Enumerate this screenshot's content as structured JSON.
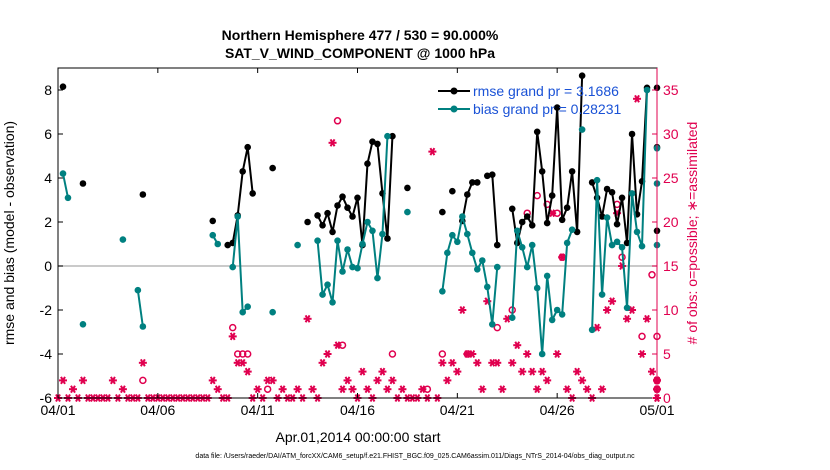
{
  "chart_data": {
    "type": "line",
    "title": "Northern Hemisphere 477 / 530 = 90.000%",
    "subtitle": "SAT_V_WIND_COMPONENT @ 1000 hPa",
    "xlabel": "Apr.01,2014 00:00:00 start",
    "ylabel_left": "rmse and bias (model - observation)",
    "ylabel_right": "# of obs: o=possible; ∗=assimilated",
    "footer": "data file: /Users/raeder/DAI/ATM_forcXX/CAM6_setup/f.e21.FHIST_BGC.f09_025.CAM6assim.011/Diags_NTrS_2014-04/obs_diag_output.nc",
    "xlim": [
      0,
      30
    ],
    "ylim_left": [
      -6,
      9
    ],
    "ylim_right": [
      0,
      37.5
    ],
    "x_ticks": [
      0,
      5,
      10,
      15,
      20,
      25,
      30
    ],
    "x_tick_labels": [
      "04/01",
      "04/06",
      "04/11",
      "04/16",
      "04/21",
      "04/26",
      "05/01"
    ],
    "y_ticks_left": [
      -6,
      -4,
      -2,
      0,
      2,
      4,
      6,
      8
    ],
    "y_ticks_right": [
      0,
      5,
      10,
      15,
      20,
      25,
      30,
      35
    ],
    "legend": [
      {
        "label": "rmse grand pr = 3.1686",
        "color": "#000000"
      },
      {
        "label": "bias grand pr = 0.28231",
        "color": "#008080"
      }
    ],
    "series": [
      {
        "name": "rmse",
        "color": "#000000",
        "points": [
          [
            0.25,
            8.15
          ],
          [
            1.25,
            3.75
          ],
          [
            4.25,
            3.25
          ],
          [
            7.75,
            2.05
          ],
          [
            8.75,
            1.05
          ],
          [
            8.5,
            0.95
          ],
          [
            9.0,
            2.3
          ],
          [
            9.25,
            4.3
          ],
          [
            9.5,
            5.4
          ],
          [
            9.75,
            3.3
          ],
          [
            10.75,
            4.45
          ],
          [
            12.5,
            2.0
          ],
          [
            13.0,
            2.3
          ],
          [
            13.25,
            1.85
          ],
          [
            13.5,
            2.4
          ],
          [
            13.75,
            1.55
          ],
          [
            14.0,
            2.75
          ],
          [
            14.25,
            3.15
          ],
          [
            14.5,
            2.65
          ],
          [
            14.75,
            2.25
          ],
          [
            15.0,
            3.1
          ],
          [
            15.25,
            0.95
          ],
          [
            15.5,
            4.65
          ],
          [
            15.75,
            5.65
          ],
          [
            16.0,
            5.55
          ],
          [
            16.25,
            3.3
          ],
          [
            16.5,
            1.25
          ],
          [
            16.75,
            5.9
          ],
          [
            17.5,
            3.55
          ],
          [
            19.25,
            2.45
          ],
          [
            19.75,
            3.4
          ],
          [
            20.25,
            2.05
          ],
          [
            20.5,
            3.25
          ],
          [
            20.75,
            3.8
          ],
          [
            21.0,
            3.8
          ],
          [
            21.5,
            4.1
          ],
          [
            21.75,
            4.15
          ],
          [
            22.0,
            0.95
          ],
          [
            22.75,
            2.6
          ],
          [
            23.0,
            1.05
          ],
          [
            23.25,
            2.0
          ],
          [
            23.5,
            2.25
          ],
          [
            23.75,
            1.85
          ],
          [
            24.0,
            6.1
          ],
          [
            24.25,
            4.3
          ],
          [
            24.5,
            1.95
          ],
          [
            24.75,
            3.2
          ],
          [
            25.0,
            7.2
          ],
          [
            25.25,
            2.1
          ],
          [
            25.5,
            2.65
          ],
          [
            25.75,
            4.3
          ],
          [
            26.0,
            1.55
          ],
          [
            26.25,
            8.65
          ],
          [
            26.75,
            3.8
          ],
          [
            27.0,
            3.1
          ],
          [
            27.25,
            2.25
          ],
          [
            27.5,
            3.5
          ],
          [
            27.75,
            3.35
          ],
          [
            28.0,
            1.9
          ],
          [
            28.25,
            3.1
          ],
          [
            28.5,
            1.05
          ],
          [
            28.75,
            6.0
          ],
          [
            29.0,
            2.35
          ],
          [
            29.25,
            3.85
          ],
          [
            29.5,
            8.1
          ],
          [
            30.0,
            1.6
          ],
          [
            30.75,
            8.1
          ],
          [
            31.25,
            5.4
          ]
        ]
      },
      {
        "name": "bias",
        "color": "#008080",
        "points": [
          [
            0.25,
            4.2
          ],
          [
            0.5,
            3.1
          ],
          [
            1.25,
            -2.65
          ],
          [
            3.25,
            1.2
          ],
          [
            4.0,
            -1.1
          ],
          [
            4.25,
            -2.75
          ],
          [
            7.75,
            1.4
          ],
          [
            8.0,
            1.0
          ],
          [
            8.75,
            -0.05
          ],
          [
            9.0,
            2.25
          ],
          [
            9.25,
            -2.1
          ],
          [
            9.5,
            -1.85
          ],
          [
            10.75,
            -2.1
          ],
          [
            12.0,
            0.95
          ],
          [
            13.0,
            1.15
          ],
          [
            13.25,
            -1.3
          ],
          [
            13.5,
            -0.85
          ],
          [
            13.75,
            -1.65
          ],
          [
            14.0,
            1.15
          ],
          [
            14.25,
            -0.25
          ],
          [
            14.5,
            0.75
          ],
          [
            14.75,
            -0.05
          ],
          [
            15.0,
            -0.1
          ],
          [
            15.25,
            1.0
          ],
          [
            15.5,
            2.0
          ],
          [
            15.75,
            1.6
          ],
          [
            16.0,
            -0.55
          ],
          [
            16.25,
            1.45
          ],
          [
            16.5,
            5.9
          ],
          [
            17.5,
            2.45
          ],
          [
            19.25,
            -1.15
          ],
          [
            19.5,
            0.6
          ],
          [
            19.75,
            1.4
          ],
          [
            20.0,
            1.1
          ],
          [
            20.25,
            2.25
          ],
          [
            20.5,
            1.45
          ],
          [
            20.75,
            0.6
          ],
          [
            21.0,
            -0.15
          ],
          [
            21.25,
            0.25
          ],
          [
            21.5,
            -0.95
          ],
          [
            21.75,
            -2.65
          ],
          [
            22.0,
            -0.05
          ],
          [
            22.75,
            -2.35
          ],
          [
            23.0,
            1.6
          ],
          [
            23.25,
            0.85
          ],
          [
            23.5,
            -0.05
          ],
          [
            23.75,
            0.95
          ],
          [
            24.0,
            -1.0
          ],
          [
            24.25,
            -4.0
          ],
          [
            24.5,
            -0.45
          ],
          [
            24.75,
            -2.45
          ],
          [
            25.0,
            -2.0
          ],
          [
            25.25,
            -2.2
          ],
          [
            25.5,
            1.05
          ],
          [
            25.75,
            1.65
          ],
          [
            26.25,
            6.2
          ],
          [
            26.75,
            -2.9
          ],
          [
            27.0,
            3.9
          ],
          [
            27.25,
            -1.3
          ],
          [
            27.5,
            2.2
          ],
          [
            27.75,
            0.95
          ],
          [
            28.0,
            1.1
          ],
          [
            28.25,
            0.85
          ],
          [
            28.5,
            -1.9
          ],
          [
            28.75,
            3.3
          ],
          [
            29.0,
            1.55
          ],
          [
            29.25,
            0.9
          ],
          [
            29.5,
            8.0
          ],
          [
            30.0,
            0.95
          ],
          [
            30.75,
            5.35
          ],
          [
            31.25,
            3.75
          ]
        ]
      }
    ],
    "assimilated": {
      "color": "#e0004f",
      "marker": "asterisk",
      "points": [
        [
          0,
          0
        ],
        [
          0.25,
          2
        ],
        [
          0.5,
          0
        ],
        [
          0.75,
          1
        ],
        [
          1,
          0
        ],
        [
          1.25,
          2
        ],
        [
          1.5,
          0
        ],
        [
          1.75,
          0
        ],
        [
          2,
          0
        ],
        [
          2.25,
          0
        ],
        [
          2.5,
          0
        ],
        [
          2.75,
          2
        ],
        [
          3,
          0
        ],
        [
          3.25,
          1
        ],
        [
          3.5,
          0
        ],
        [
          3.75,
          0
        ],
        [
          4,
          0
        ],
        [
          4.25,
          4
        ],
        [
          4.5,
          0
        ],
        [
          4.75,
          0
        ],
        [
          5,
          0
        ],
        [
          5.25,
          0
        ],
        [
          5.5,
          0
        ],
        [
          5.75,
          0
        ],
        [
          6,
          0
        ],
        [
          6.25,
          0
        ],
        [
          6.5,
          0
        ],
        [
          6.75,
          0
        ],
        [
          7,
          0
        ],
        [
          7.25,
          0
        ],
        [
          7.5,
          0
        ],
        [
          7.75,
          2
        ],
        [
          8,
          1
        ],
        [
          8.25,
          0
        ],
        [
          8.5,
          0
        ],
        [
          8.75,
          7
        ],
        [
          9,
          4
        ],
        [
          9.25,
          4
        ],
        [
          9.5,
          3
        ],
        [
          9.75,
          0
        ],
        [
          10,
          1
        ],
        [
          10.25,
          0
        ],
        [
          10.5,
          2
        ],
        [
          10.75,
          2
        ],
        [
          11,
          0
        ],
        [
          11.25,
          1
        ],
        [
          11.5,
          0
        ],
        [
          11.75,
          0
        ],
        [
          12,
          1
        ],
        [
          12.25,
          0
        ],
        [
          12.5,
          9
        ],
        [
          12.75,
          1
        ],
        [
          13,
          0
        ],
        [
          13.25,
          4
        ],
        [
          13.5,
          5
        ],
        [
          13.75,
          29
        ],
        [
          14,
          6
        ],
        [
          14.25,
          1
        ],
        [
          14.5,
          2
        ],
        [
          14.75,
          1
        ],
        [
          15,
          0
        ],
        [
          15.25,
          3
        ],
        [
          15.5,
          1
        ],
        [
          15.75,
          0
        ],
        [
          16,
          2
        ],
        [
          16.25,
          3
        ],
        [
          16.5,
          1
        ],
        [
          16.75,
          2
        ],
        [
          17,
          0
        ],
        [
          17.25,
          1
        ],
        [
          17.5,
          0
        ],
        [
          17.75,
          0
        ],
        [
          18,
          0
        ],
        [
          18.25,
          1
        ],
        [
          18.5,
          0
        ],
        [
          18.75,
          28
        ],
        [
          19,
          0
        ],
        [
          19.25,
          4
        ],
        [
          19.5,
          2
        ],
        [
          19.75,
          4
        ],
        [
          20,
          3
        ],
        [
          20.25,
          10
        ],
        [
          20.5,
          5
        ],
        [
          20.75,
          5
        ],
        [
          21,
          4
        ],
        [
          21.25,
          1
        ],
        [
          21.5,
          11
        ],
        [
          21.75,
          4
        ],
        [
          22,
          4
        ],
        [
          22.25,
          1
        ],
        [
          22.5,
          9
        ],
        [
          22.75,
          4
        ],
        [
          23,
          6
        ],
        [
          23.25,
          3
        ],
        [
          23.5,
          5
        ],
        [
          23.75,
          3
        ],
        [
          24,
          1
        ],
        [
          24.25,
          3
        ],
        [
          24.5,
          2
        ],
        [
          24.75,
          21
        ],
        [
          25,
          5
        ],
        [
          25.25,
          16
        ],
        [
          25.5,
          1
        ],
        [
          25.75,
          0
        ],
        [
          26,
          3
        ],
        [
          26.25,
          2
        ],
        [
          26.5,
          1
        ],
        [
          26.75,
          0
        ],
        [
          27,
          8
        ],
        [
          27.25,
          1
        ],
        [
          27.5,
          10
        ],
        [
          27.75,
          11
        ],
        [
          28,
          21
        ],
        [
          28.25,
          15
        ],
        [
          28.5,
          9
        ],
        [
          28.75,
          10
        ],
        [
          29,
          34
        ],
        [
          29.25,
          5
        ],
        [
          29.5,
          9
        ],
        [
          29.75,
          3
        ],
        [
          30,
          2
        ],
        [
          30.25,
          0
        ],
        [
          30.5,
          2
        ],
        [
          30.75,
          1
        ],
        [
          31,
          0
        ],
        [
          31.25,
          2
        ]
      ]
    },
    "possible": {
      "color": "#e0004f",
      "marker": "circle",
      "points": [
        [
          4.25,
          2
        ],
        [
          8.75,
          8
        ],
        [
          9.0,
          5
        ],
        [
          9.25,
          5
        ],
        [
          9.5,
          5
        ],
        [
          10.5,
          1
        ],
        [
          14.0,
          31.5
        ],
        [
          14.25,
          6
        ],
        [
          16.75,
          5
        ],
        [
          18.5,
          1
        ],
        [
          19.25,
          5
        ],
        [
          20.5,
          5
        ],
        [
          22.0,
          8
        ],
        [
          22.75,
          10
        ],
        [
          23.5,
          21
        ],
        [
          24.0,
          23
        ],
        [
          24.5,
          22
        ],
        [
          25.0,
          21
        ],
        [
          25.25,
          16
        ],
        [
          28.0,
          22
        ],
        [
          28.25,
          16
        ],
        [
          29.25,
          7
        ],
        [
          29.75,
          14
        ],
        [
          30.0,
          2
        ],
        [
          30.25,
          7
        ],
        [
          30.75,
          2
        ],
        [
          31.0,
          1
        ]
      ]
    }
  }
}
